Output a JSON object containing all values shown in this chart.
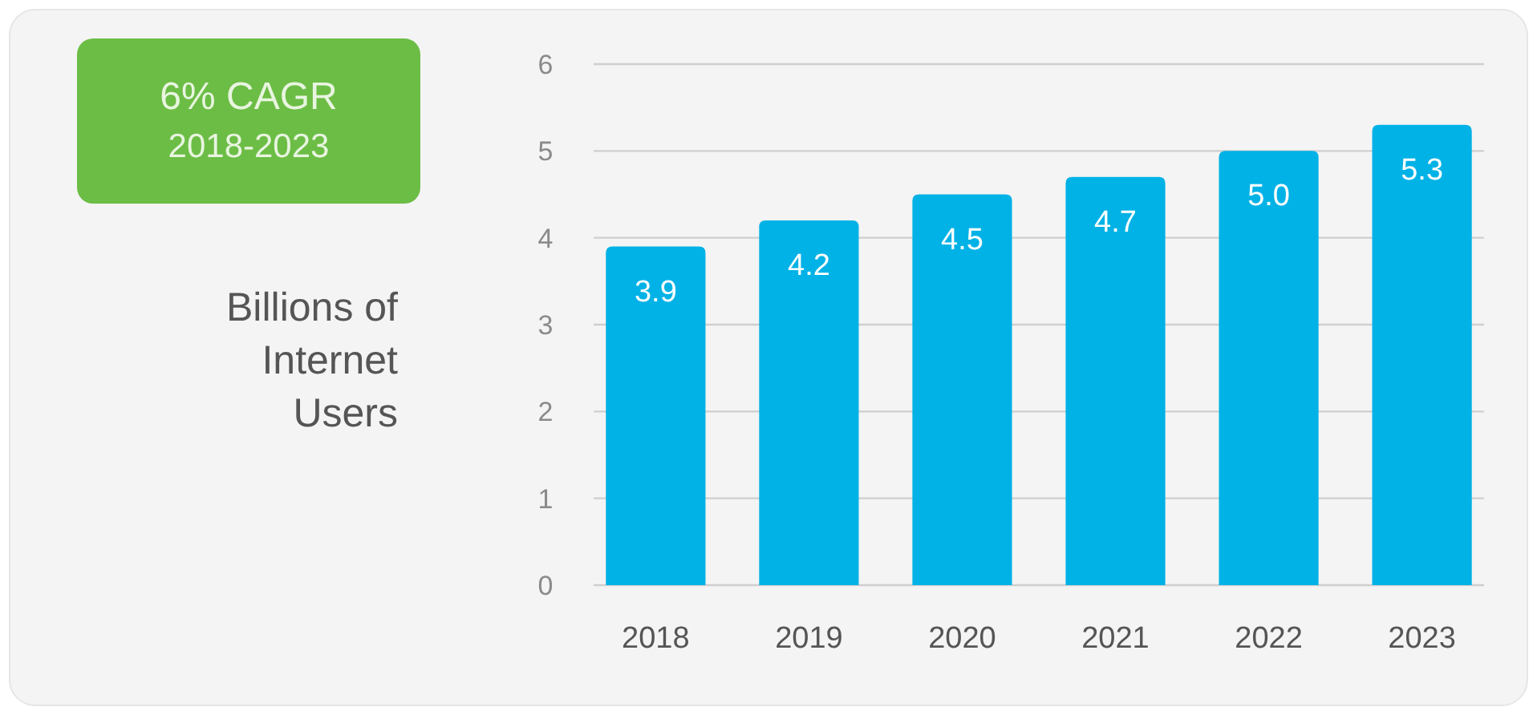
{
  "chart_data": {
    "type": "bar",
    "ylabel": "Billions of Internet Users",
    "annotations": [
      "6% CAGR",
      "2018-2023"
    ],
    "categories": [
      "2018",
      "2019",
      "2020",
      "2021",
      "2022",
      "2023"
    ],
    "values": [
      3.9,
      4.2,
      4.5,
      4.7,
      5.0,
      5.3
    ],
    "value_labels": [
      "3.9",
      "4.2",
      "4.5",
      "4.7",
      "5.0",
      "5.3"
    ],
    "color": "#00b2e6",
    "ylim": [
      0,
      6
    ],
    "yticks": [
      0,
      1,
      2,
      3,
      4,
      5,
      6
    ],
    "grid": "y"
  }
}
